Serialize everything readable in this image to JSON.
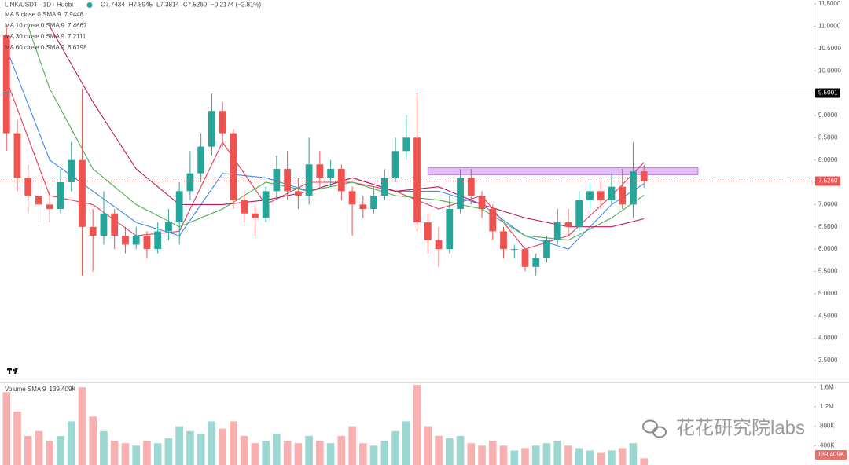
{
  "chart_data": {
    "type": "candlestick",
    "header": {
      "symbol": "LINK/USDT · 1D · Huobi",
      "ohlc": [
        "O7.7434",
        "H7.8945",
        "L7.3814",
        "C7.5260"
      ],
      "change": "−0.2174 (−2.81%)"
    },
    "watermark": "花花研究院labs",
    "up_color": "#26a69a",
    "down_color": "#ef5350",
    "xlim": [
      -0.6,
      74.7
    ],
    "ylim": [
      3.04,
      11.59
    ],
    "grid": false,
    "yticks": [
      {
        "value": 3.5,
        "label": "3.5000"
      },
      {
        "value": 4,
        "label": "4.0000"
      },
      {
        "value": 4.5,
        "label": "4.5000"
      },
      {
        "value": 5,
        "label": "5.0000"
      },
      {
        "value": 5.5,
        "label": "5.5000"
      },
      {
        "value": 6,
        "label": "6.0000"
      },
      {
        "value": 6.5,
        "label": "6.5000"
      },
      {
        "value": 7,
        "label": "7.0000"
      },
      {
        "value": 7.5,
        "label": "7.5000"
      },
      {
        "value": 8,
        "label": "8.0000"
      },
      {
        "value": 8.5,
        "label": "8.5000"
      },
      {
        "value": 9,
        "label": "9.0000"
      },
      {
        "value": 9.5,
        "label": "9.5000"
      },
      {
        "value": 10,
        "label": "10.0000"
      },
      {
        "value": 10.5,
        "label": "10.5000"
      },
      {
        "value": 11,
        "label": "11.0000"
      },
      {
        "value": 11.5,
        "label": "11.5000"
      }
    ],
    "open": [
      10.8,
      8.6,
      7.6,
      7.2,
      7.0,
      6.9,
      7.5,
      8.0,
      6.5,
      6.3,
      6.8,
      6.3,
      6.1,
      6.3,
      6.0,
      6.4,
      6.6,
      7.3,
      7.7,
      8.3,
      9.1,
      8.6,
      7.1,
      6.8,
      6.7,
      7.3,
      7.8,
      7.3,
      7.2,
      7.9,
      7.6,
      7.8,
      7.3,
      7.0,
      6.9,
      7.2,
      7.6,
      8.2,
      8.5,
      6.6,
      6.2,
      6.0,
      6.9,
      7.6,
      7.2,
      6.9,
      6.4,
      6.0,
      6.0,
      5.6,
      5.8,
      6.2,
      6.6,
      6.5,
      7.1,
      7.3,
      7.1,
      7.4,
      7.0,
      7.7434
    ],
    "high": [
      11.0,
      8.9,
      7.9,
      7.6,
      7.3,
      7.8,
      8.4,
      9.6,
      6.9,
      7.3,
      6.9,
      6.5,
      6.5,
      6.4,
      6.6,
      6.9,
      7.5,
      8.2,
      8.6,
      9.5,
      9.3,
      8.7,
      7.3,
      7.0,
      7.4,
      8.1,
      8.2,
      7.6,
      8.5,
      8.2,
      8.0,
      7.9,
      7.4,
      7.2,
      7.4,
      7.8,
      8.5,
      9.0,
      9.5,
      6.8,
      6.5,
      7.2,
      7.8,
      7.8,
      7.3,
      7.0,
      6.5,
      6.1,
      6.0,
      5.9,
      6.3,
      6.9,
      6.9,
      7.3,
      7.5,
      7.5,
      7.7,
      7.8,
      8.4,
      7.8945
    ],
    "low": [
      8.2,
      7.3,
      6.8,
      6.6,
      6.6,
      6.8,
      7.3,
      5.4,
      5.5,
      6.1,
      6.0,
      5.9,
      6.0,
      5.8,
      5.9,
      6.2,
      6.1,
      7.1,
      7.5,
      8.1,
      8.3,
      6.9,
      6.6,
      6.3,
      6.6,
      7.1,
      7.1,
      6.9,
      7.0,
      7.4,
      7.4,
      7.1,
      6.3,
      6.7,
      6.8,
      7.1,
      7.5,
      8.0,
      6.4,
      5.9,
      5.6,
      5.9,
      6.8,
      7.0,
      6.7,
      6.2,
      5.8,
      5.8,
      5.5,
      5.4,
      5.7,
      6.1,
      6.3,
      6.4,
      6.9,
      6.9,
      7.0,
      6.9,
      6.7,
      7.3814
    ],
    "close": [
      8.6,
      7.6,
      7.2,
      7.0,
      6.9,
      7.5,
      8.0,
      6.5,
      6.3,
      6.8,
      6.3,
      6.1,
      6.3,
      6.0,
      6.4,
      6.6,
      7.3,
      7.7,
      8.3,
      9.1,
      8.6,
      7.1,
      6.8,
      6.7,
      7.3,
      7.8,
      7.3,
      7.2,
      7.9,
      7.6,
      7.8,
      7.3,
      7.0,
      6.9,
      7.2,
      7.6,
      8.2,
      8.5,
      6.6,
      6.2,
      6.0,
      6.9,
      7.6,
      7.2,
      6.9,
      6.4,
      6.0,
      6.0,
      5.6,
      5.8,
      6.2,
      6.6,
      6.5,
      7.1,
      7.3,
      7.1,
      7.4,
      7.0,
      7.7434,
      7.526
    ],
    "series": [
      {
        "name": "MA 5 close 0 SMA 9",
        "color": "#e5395a",
        "x": [
          0,
          4,
          8,
          12,
          16,
          20,
          24,
          28,
          32,
          36,
          40,
          44,
          48,
          52,
          56,
          59
        ],
        "values": [
          9.8,
          7.2,
          7.0,
          6.3,
          6.4,
          8.4,
          7.0,
          7.5,
          7.5,
          7.3,
          6.9,
          7.2,
          6.0,
          6.3,
          7.2,
          7.9448
        ]
      },
      {
        "name": "MA 10 close 0 SMA 9",
        "color": "#3d8bf2",
        "x": [
          0,
          4,
          8,
          12,
          16,
          20,
          24,
          28,
          32,
          36,
          40,
          44,
          48,
          52,
          56,
          59
        ],
        "values": [
          10.5,
          8.0,
          7.3,
          6.6,
          6.3,
          7.7,
          7.6,
          7.3,
          7.6,
          7.3,
          7.3,
          7.0,
          6.3,
          6.0,
          7.0,
          7.4667
        ]
      },
      {
        "name": "MA 30 close 0 SMA 9",
        "color": "#4caf50",
        "x": [
          2,
          4,
          8,
          12,
          16,
          20,
          24,
          28,
          32,
          36,
          40,
          44,
          48,
          52,
          56,
          59
        ],
        "values": [
          11.0,
          9.6,
          7.8,
          7.0,
          6.5,
          6.9,
          7.5,
          7.3,
          7.5,
          7.2,
          7.1,
          6.9,
          6.3,
          6.2,
          6.7,
          7.2111
        ]
      },
      {
        "name": "MA 60 close 0 SMA 9",
        "color": "#c2185b",
        "x": [
          4,
          8,
          12,
          16,
          20,
          24,
          28,
          32,
          36,
          40,
          44,
          48,
          52,
          56,
          59
        ],
        "values": [
          11.0,
          9.3,
          7.8,
          7.0,
          7.0,
          7.1,
          7.3,
          7.6,
          7.3,
          7.4,
          7.0,
          6.7,
          6.5,
          6.5,
          6.6798
        ]
      }
    ],
    "hline": {
      "value": 9.5001,
      "color": "#000000"
    },
    "last_price": {
      "value": 7.526,
      "label": "7.5260"
    },
    "zone": {
      "from": 39,
      "to": 64,
      "low": 7.67,
      "high": 7.83,
      "color": "#d9a8f0"
    },
    "volume": {
      "name": "Volume SMA 9",
      "value_label": "139.409K",
      "ylim": [
        0,
        1700000
      ],
      "yticks": [
        {
          "value": 400000,
          "label": "400K"
        },
        {
          "value": 800000,
          "label": "800K"
        },
        {
          "value": 1200000,
          "label": "1.2M"
        },
        {
          "value": 1600000,
          "label": "1.6M"
        }
      ],
      "values": [
        1500000,
        1100000,
        600000,
        700000,
        500000,
        600000,
        900000,
        1600000,
        1000000,
        700000,
        500000,
        450000,
        400000,
        500000,
        450000,
        550000,
        800000,
        700000,
        650000,
        900000,
        750000,
        900000,
        600000,
        450000,
        500000,
        650000,
        500000,
        450000,
        600000,
        500000,
        450000,
        600000,
        800000,
        450000,
        400000,
        500000,
        700000,
        900000,
        1650000,
        800000,
        600000,
        550000,
        600000,
        450000,
        400000,
        500000,
        400000,
        300000,
        350000,
        400000,
        450000,
        500000,
        400000,
        350000,
        300000,
        250000,
        300000,
        350000,
        450000,
        139409
      ]
    }
  }
}
